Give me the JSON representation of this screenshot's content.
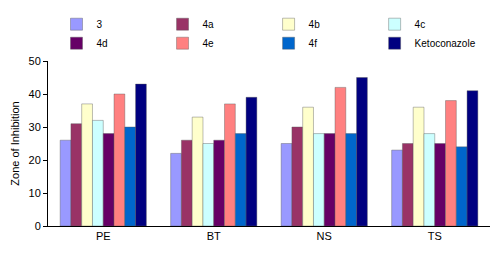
{
  "chart_data": {
    "type": "bar",
    "y_label": "Zone of Inhibition",
    "categories": [
      "PE",
      "BT",
      "NS",
      "TS"
    ],
    "series": [
      {
        "name": "3",
        "color": "#9999ff",
        "values": [
          26,
          22,
          25,
          23
        ]
      },
      {
        "name": "4a",
        "color": "#993366",
        "values": [
          31,
          26,
          30,
          25
        ]
      },
      {
        "name": "4b",
        "color": "#ffffcc",
        "values": [
          37,
          33,
          36,
          36
        ]
      },
      {
        "name": "4c",
        "color": "#ccffff",
        "values": [
          32,
          25,
          28,
          28
        ]
      },
      {
        "name": "4d",
        "color": "#660066",
        "values": [
          28,
          26,
          28,
          25
        ]
      },
      {
        "name": "4e",
        "color": "#ff8080",
        "values": [
          40,
          37,
          42,
          38
        ]
      },
      {
        "name": "4f",
        "color": "#0066cc",
        "values": [
          30,
          28,
          28,
          24
        ]
      },
      {
        "name": "Ketoconazole",
        "color": "#000080",
        "values": [
          43,
          39,
          45,
          41
        ]
      }
    ],
    "ylim": [
      0,
      50
    ],
    "yticks": [
      0,
      10,
      20,
      30,
      40,
      50
    ],
    "grid": false,
    "legend": "top"
  }
}
